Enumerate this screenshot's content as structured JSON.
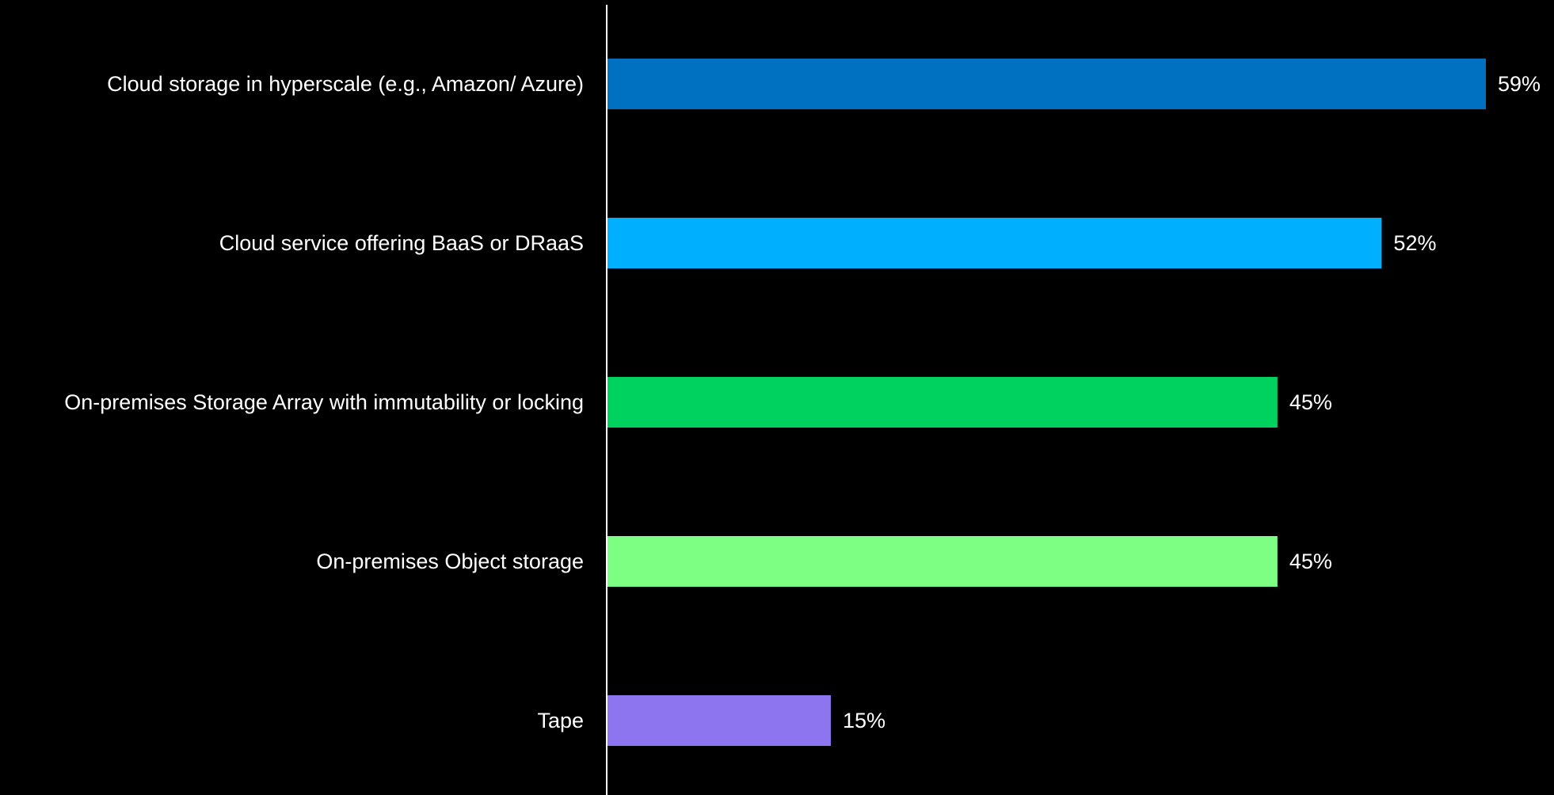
{
  "chart_data": {
    "type": "bar",
    "orientation": "horizontal",
    "categories": [
      "Cloud storage in hyperscale (e.g., Amazon/ Azure)",
      "Cloud service offering BaaS or DRaaS",
      "On-premises Storage Array with immutability or locking",
      "On-premises Object storage",
      "Tape"
    ],
    "values": [
      59,
      52,
      45,
      45,
      15
    ],
    "value_labels": [
      "59%",
      "52%",
      "45%",
      "45%",
      "15%"
    ],
    "colors": [
      "#0070C0",
      "#00B0FF",
      "#00D25F",
      "#7CFF82",
      "#8E75F0"
    ],
    "xlim": [
      0,
      60
    ],
    "unit": "%",
    "title": "",
    "xlabel": "",
    "ylabel": "",
    "grid": false,
    "legend": "none",
    "background": "#000000",
    "axis_color": "#ffffff"
  }
}
